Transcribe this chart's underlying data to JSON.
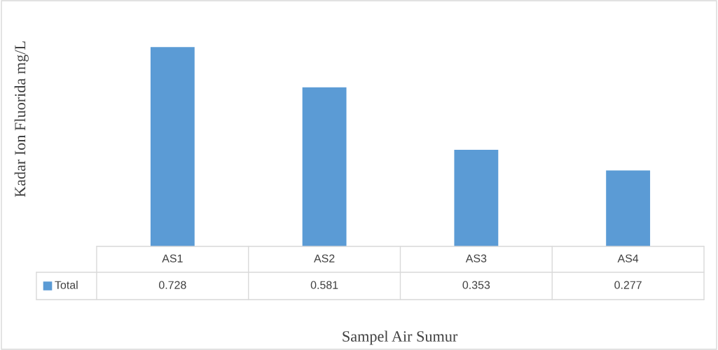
{
  "chart_data": {
    "type": "bar",
    "xlabel": "Sampel Air Sumur",
    "ylabel": "Kadar Ion Fluorida mg/L",
    "categories": [
      "AS1",
      "AS2",
      "AS3",
      "AS4"
    ],
    "series": [
      {
        "name": "Total",
        "color": "#5b9bd5",
        "values": [
          0.728,
          0.581,
          0.353,
          0.277
        ]
      }
    ],
    "data_labels": true
  }
}
